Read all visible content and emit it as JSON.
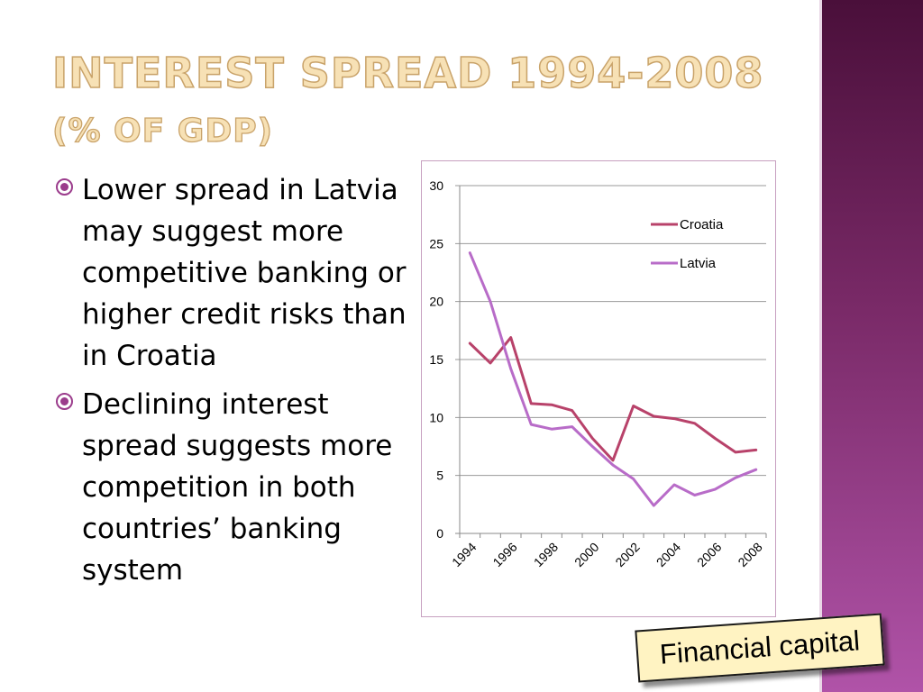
{
  "slide": {
    "title": "INTEREST SPREAD 1994-2008",
    "subtitle": "(% OF GDP)",
    "bullets": [
      "Lower spread in Latvia may suggest more competitive banking or higher credit risks than in Croatia",
      "Declining interest spread suggests more competition in both countries’ banking system"
    ],
    "badge": "Financial capital"
  },
  "chart_data": {
    "type": "line",
    "x": [
      1994,
      1995,
      1996,
      1997,
      1998,
      1999,
      2000,
      2001,
      2002,
      2003,
      2004,
      2005,
      2006,
      2007,
      2008
    ],
    "x_tick_labels": [
      "1994",
      "1996",
      "1998",
      "2000",
      "2002",
      "2004",
      "2006",
      "2008"
    ],
    "y_ticks": [
      0,
      5,
      10,
      15,
      20,
      25,
      30
    ],
    "ylim": [
      0,
      30
    ],
    "grid": true,
    "legend_position": "top-right",
    "series": [
      {
        "name": "Croatia",
        "color": "#b8426a",
        "values": [
          16.4,
          14.7,
          16.9,
          11.2,
          11.1,
          10.6,
          8.2,
          6.3,
          11.0,
          10.1,
          9.9,
          9.5,
          8.2,
          7.0,
          7.2
        ]
      },
      {
        "name": "Latvia",
        "color": "#b86cc8",
        "values": [
          24.2,
          20.0,
          14.2,
          9.4,
          9.0,
          9.2,
          7.5,
          5.9,
          4.7,
          2.4,
          4.2,
          3.3,
          3.8,
          4.8,
          5.5
        ]
      }
    ],
    "title": "",
    "xlabel": "",
    "ylabel": ""
  }
}
